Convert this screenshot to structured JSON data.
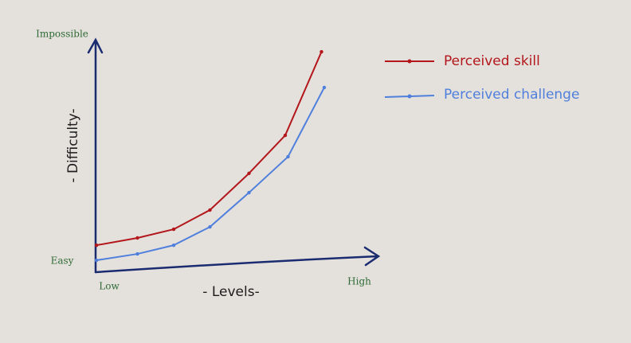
{
  "chart_data": {
    "type": "line",
    "x_label": "- Levels-",
    "y_label": "- Difficulty-",
    "xlim": [
      0,
      100
    ],
    "xticks": [
      {
        "value": 0,
        "label": "Low"
      },
      {
        "value": 100,
        "label": "High"
      }
    ],
    "ylim": [
      0,
      100
    ],
    "yticks": [
      {
        "value": 0,
        "label": "Easy"
      },
      {
        "value": 100,
        "label": "Impossible"
      }
    ],
    "series": [
      {
        "name": "Perceived skill",
        "color": "#b3161b",
        "x": [
          0.3,
          15,
          28,
          41,
          55,
          68,
          81
        ],
        "values": [
          10.8,
          13.9,
          17.6,
          25.8,
          41.4,
          57.6,
          93.2
        ]
      },
      {
        "name": "Perceived challenge",
        "color": "#4f7fdc",
        "x": [
          0.3,
          15,
          28,
          41,
          55,
          69,
          82
        ],
        "values": [
          4.4,
          7.1,
          10.8,
          18.6,
          33.2,
          48.5,
          78
        ]
      }
    ],
    "legend": "top-right"
  }
}
